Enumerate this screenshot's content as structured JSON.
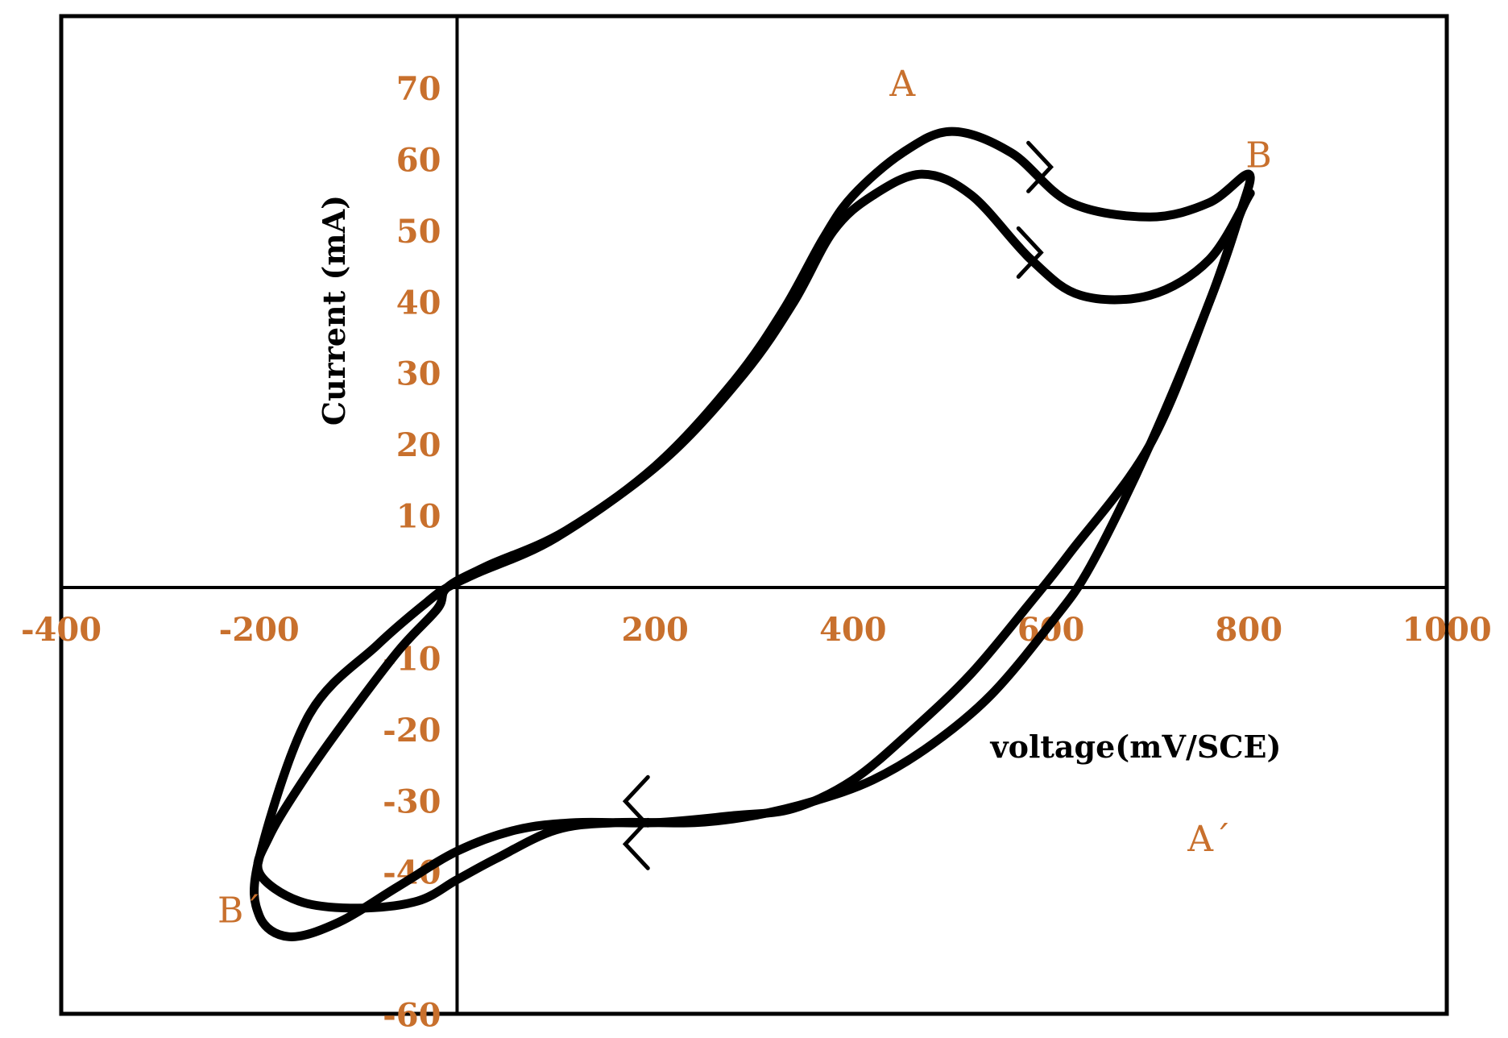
{
  "chart_data": {
    "type": "line",
    "title": "",
    "xlabel": "voltage(mV/SCE)",
    "ylabel": "Current (mA)",
    "xlim": [
      -400,
      1000
    ],
    "ylim": [
      -60,
      70
    ],
    "grid": false,
    "tick_color": "#C8702D",
    "x_ticks": [
      {
        "value": -400,
        "label": "-400"
      },
      {
        "value": -200,
        "label": "-200"
      },
      {
        "value": 200,
        "label": "200"
      },
      {
        "value": 400,
        "label": "400"
      },
      {
        "value": 600,
        "label": "600"
      },
      {
        "value": 800,
        "label": "800"
      },
      {
        "value": 1000,
        "label": "1000"
      }
    ],
    "y_ticks": [
      {
        "value": 70,
        "label": "70"
      },
      {
        "value": 60,
        "label": "60"
      },
      {
        "value": 50,
        "label": "50"
      },
      {
        "value": 40,
        "label": "40"
      },
      {
        "value": 30,
        "label": "30"
      },
      {
        "value": 20,
        "label": "20"
      },
      {
        "value": 10,
        "label": "10"
      },
      {
        "value": -10,
        "label": "-10"
      },
      {
        "value": -20,
        "label": "-20"
      },
      {
        "value": -30,
        "label": "-30"
      },
      {
        "value": -40,
        "label": "-40"
      },
      {
        "value": -60,
        "label": "-60"
      }
    ],
    "annotations": [
      {
        "text": "A",
        "x": 450,
        "y": 69
      },
      {
        "text": "B",
        "x": 810,
        "y": 59
      },
      {
        "text": "A´",
        "x": 760,
        "y": -37
      },
      {
        "text": "B´",
        "x": -220,
        "y": -47
      }
    ],
    "series": [
      {
        "x": [
          -10,
          20,
          100,
          200,
          280,
          330,
          370,
          400,
          450,
          500,
          560,
          620,
          700,
          760,
          800,
          790,
          760,
          700,
          620,
          580,
          520,
          460,
          400,
          340,
          280,
          200,
          120,
          60,
          0,
          -60,
          -120,
          -170,
          -200,
          -200,
          -150,
          -80,
          -30
        ],
        "y": [
          0,
          2,
          7,
          17,
          29,
          39,
          49,
          55,
          61,
          64,
          61,
          54,
          52,
          54,
          58,
          52,
          40,
          20,
          5,
          -2,
          -12,
          -20,
          -27,
          -31,
          -32,
          -33,
          -33,
          -34,
          -37,
          -42,
          -47,
          -49,
          -46,
          -38,
          -18,
          -8,
          -2
        ]
      },
      {
        "x": [
          -10,
          30,
          110,
          210,
          290,
          340,
          380,
          420,
          470,
          520,
          580,
          630,
          700,
          760,
          800,
          790,
          760,
          700,
          640,
          600,
          540,
          480,
          420,
          360,
          300,
          240,
          160,
          100,
          40,
          0,
          -40,
          -100,
          -160,
          -200,
          -190,
          -160,
          -120,
          -60,
          -20
        ],
        "y": [
          0,
          3,
          8,
          18,
          30,
          40,
          50,
          55,
          58,
          55,
          46,
          41,
          41,
          46,
          55,
          52,
          40,
          20,
          3,
          -5,
          -15,
          -22,
          -27,
          -30,
          -32,
          -33,
          -33,
          -34,
          -38,
          -41,
          -44,
          -45,
          -44,
          -40,
          -35,
          -28,
          -20,
          -9,
          -3
        ]
      }
    ]
  }
}
